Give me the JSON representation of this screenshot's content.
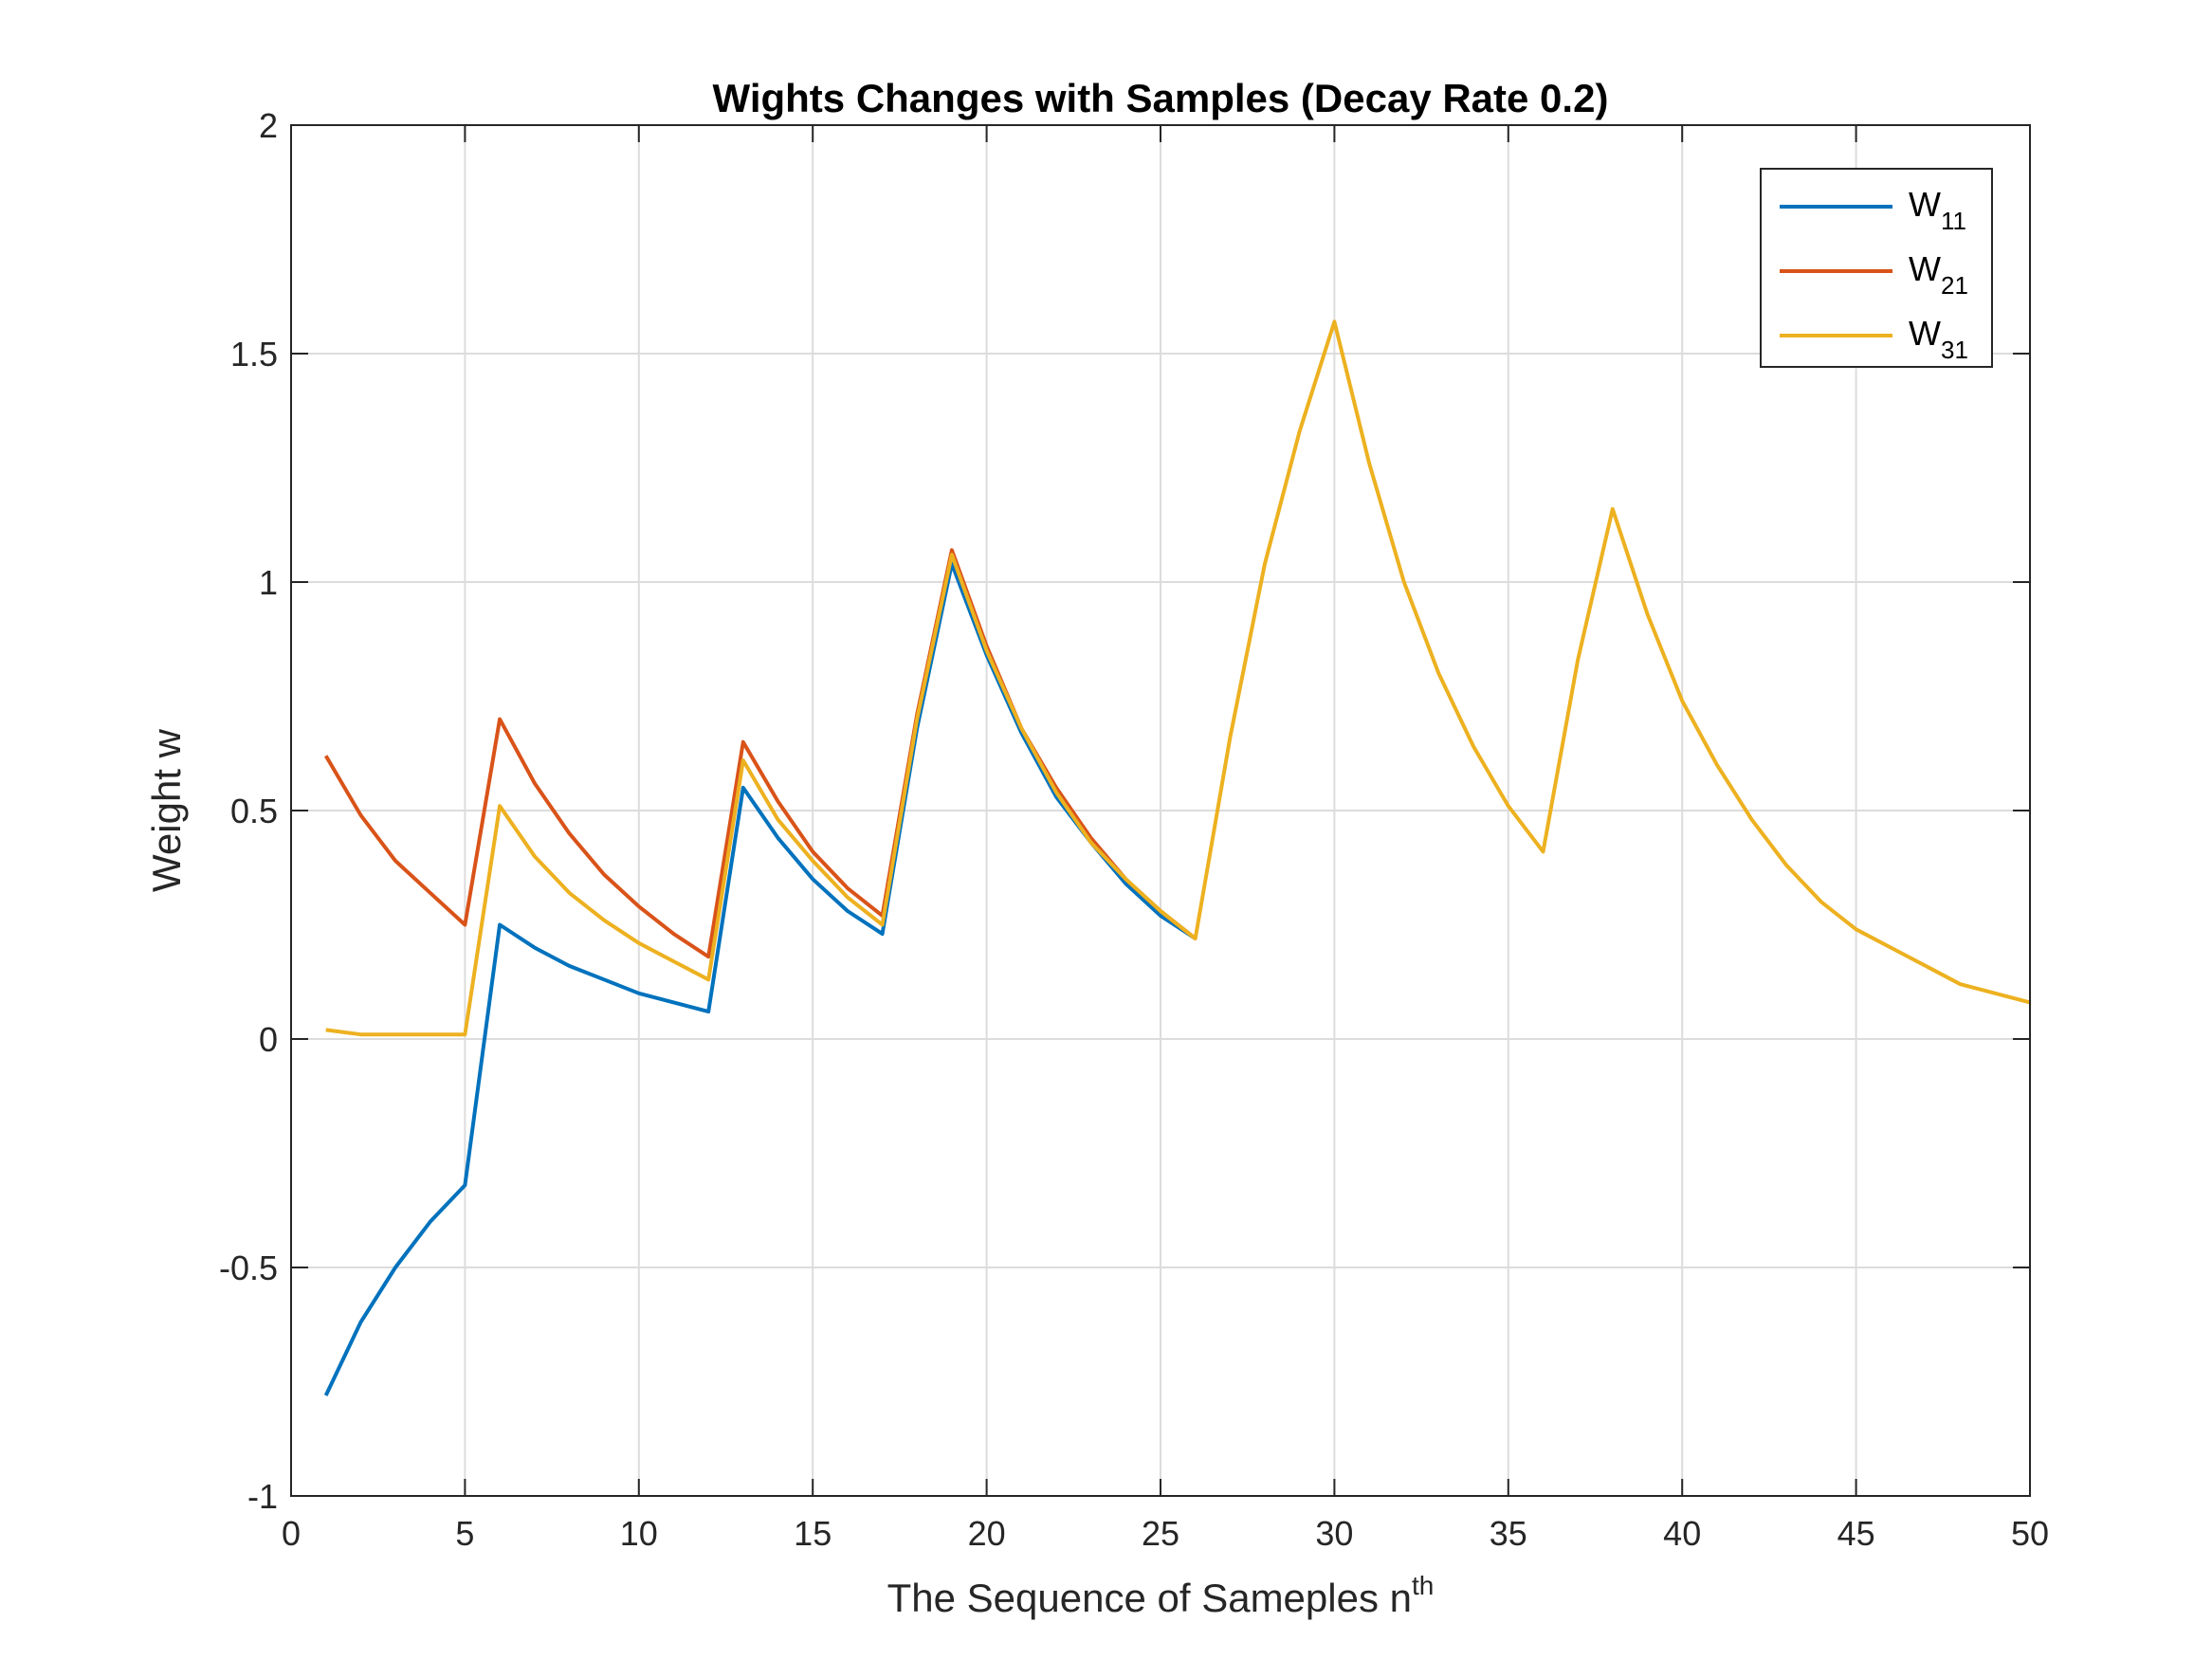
{
  "chart_data": {
    "type": "line",
    "title": "Wights Changes with Samples (Decay Rate 0.2)",
    "xlabel": "The Sequence of Sameples n",
    "xlabel_superscript": "th",
    "ylabel": "Weight w",
    "xlim": [
      0,
      50
    ],
    "ylim": [
      -1,
      2
    ],
    "xticks": [
      0,
      5,
      10,
      15,
      20,
      25,
      30,
      35,
      40,
      45,
      50
    ],
    "yticks": [
      -1,
      -0.5,
      0,
      0.5,
      1,
      1.5,
      2
    ],
    "grid": true,
    "legend_position": "top-right",
    "series": [
      {
        "name": "W",
        "subscript": "11",
        "color": "#0072BD",
        "x": [
          1,
          2,
          3,
          4,
          5,
          6,
          7,
          8,
          9,
          10,
          11,
          12,
          13,
          14,
          15,
          16,
          17,
          18,
          19,
          20,
          21,
          22,
          23,
          24,
          25,
          26
        ],
        "values": [
          -0.78,
          -0.62,
          -0.5,
          -0.4,
          -0.32,
          0.25,
          0.2,
          0.16,
          0.13,
          0.1,
          0.08,
          0.06,
          0.55,
          0.44,
          0.35,
          0.28,
          0.23,
          0.68,
          1.04,
          0.84,
          0.67,
          0.53,
          0.43,
          0.34,
          0.27,
          0.22
        ]
      },
      {
        "name": "W",
        "subscript": "21",
        "color": "#D95319",
        "x": [
          1,
          2,
          3,
          4,
          5,
          6,
          7,
          8,
          9,
          10,
          11,
          12,
          13,
          14,
          15,
          16,
          17,
          18,
          19,
          20,
          21,
          22,
          23,
          24,
          25,
          26
        ],
        "values": [
          0.62,
          0.49,
          0.39,
          0.32,
          0.25,
          0.7,
          0.56,
          0.45,
          0.36,
          0.29,
          0.23,
          0.18,
          0.65,
          0.52,
          0.41,
          0.33,
          0.27,
          0.71,
          1.07,
          0.86,
          0.68,
          0.55,
          0.44,
          0.35,
          0.28,
          0.22
        ]
      },
      {
        "name": "W",
        "subscript": "31",
        "color": "#EDB120",
        "x": [
          1,
          2,
          3,
          4,
          5,
          6,
          7,
          8,
          9,
          10,
          11,
          12,
          13,
          14,
          15,
          16,
          17,
          18,
          19,
          20,
          21,
          22,
          23,
          24,
          25,
          26,
          27,
          28,
          29,
          30,
          31,
          32,
          33,
          34,
          35,
          36,
          37,
          38,
          39,
          40,
          41,
          42,
          43,
          44,
          45,
          46,
          47,
          48,
          49,
          50
        ],
        "values": [
          0.02,
          0.01,
          0.01,
          0.01,
          0.01,
          0.51,
          0.4,
          0.32,
          0.26,
          0.21,
          0.17,
          0.13,
          0.61,
          0.48,
          0.39,
          0.31,
          0.25,
          0.7,
          1.06,
          0.85,
          0.68,
          0.54,
          0.43,
          0.35,
          0.28,
          0.22,
          0.66,
          1.04,
          1.33,
          1.57,
          1.26,
          1.0,
          0.8,
          0.64,
          0.51,
          0.41,
          0.83,
          1.16,
          0.93,
          0.74,
          0.6,
          0.48,
          0.38,
          0.3,
          0.24,
          0.2,
          0.16,
          0.12,
          0.1,
          0.08
        ]
      }
    ]
  }
}
